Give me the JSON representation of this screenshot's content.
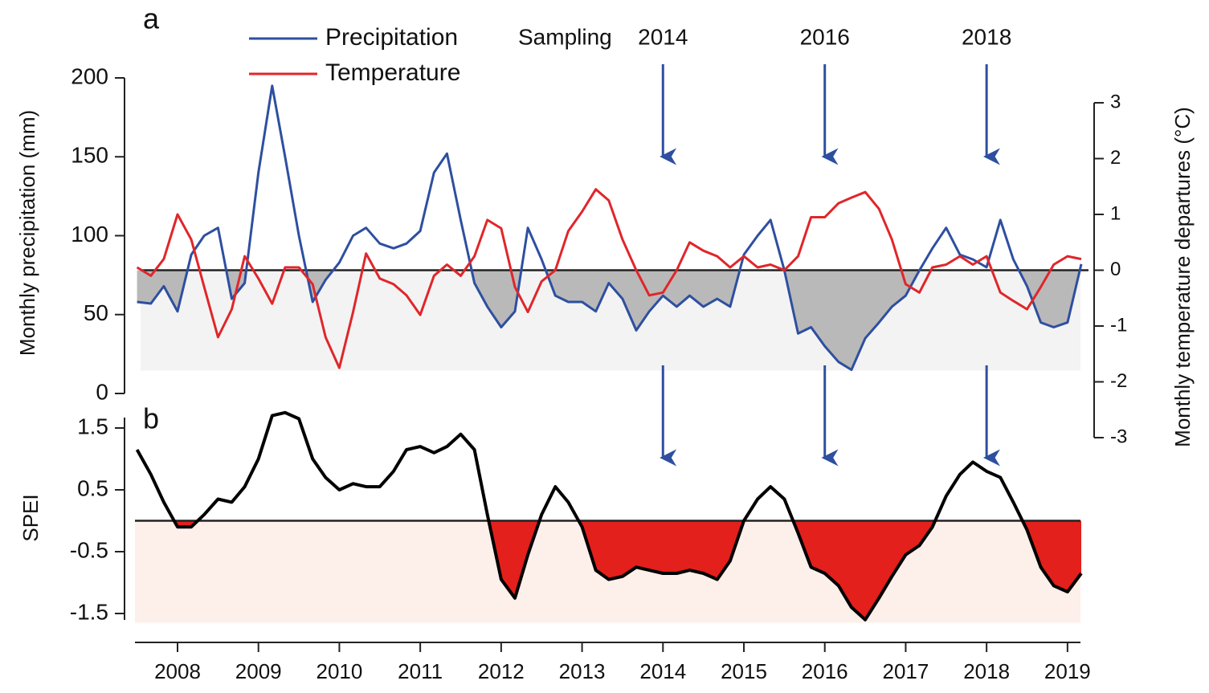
{
  "chart_data": [
    {
      "type": "line",
      "panel": "a",
      "ylabel": "Monthly precipitation (mm)",
      "y2label": "Monthly temperature departures (°C)",
      "x": [
        2007.5,
        2007.67,
        2007.83,
        2008,
        2008.17,
        2008.33,
        2008.5,
        2008.67,
        2008.83,
        2009,
        2009.17,
        2009.33,
        2009.5,
        2009.67,
        2009.83,
        2010,
        2010.17,
        2010.33,
        2010.5,
        2010.67,
        2010.83,
        2011,
        2011.17,
        2011.33,
        2011.5,
        2011.67,
        2011.83,
        2012,
        2012.17,
        2012.33,
        2012.5,
        2012.67,
        2012.83,
        2013,
        2013.17,
        2013.33,
        2013.5,
        2013.67,
        2013.83,
        2014,
        2014.17,
        2014.33,
        2014.5,
        2014.67,
        2014.83,
        2015,
        2015.17,
        2015.33,
        2015.5,
        2015.67,
        2015.83,
        2016,
        2016.17,
        2016.33,
        2016.5,
        2016.67,
        2016.83,
        2017,
        2017.17,
        2017.33,
        2017.5,
        2017.67,
        2017.83,
        2018,
        2018.17,
        2018.33,
        2018.5,
        2018.67,
        2018.83,
        2019,
        2019.17
      ],
      "xlim": [
        2007.45,
        2019.2
      ],
      "series": [
        {
          "name": "Precipitation",
          "color": "#2e4fa0",
          "axis": "y",
          "values": [
            58,
            57,
            68,
            52,
            88,
            100,
            105,
            60,
            70,
            140,
            195,
            150,
            100,
            58,
            72,
            83,
            100,
            105,
            95,
            92,
            95,
            103,
            140,
            152,
            110,
            70,
            55,
            42,
            52,
            105,
            85,
            62,
            58,
            58,
            52,
            70,
            60,
            40,
            52,
            62,
            55,
            62,
            55,
            60,
            55,
            88,
            100,
            110,
            78,
            38,
            42,
            30,
            20,
            15,
            35,
            45,
            55,
            62,
            78,
            92,
            105,
            88,
            85,
            80,
            110,
            85,
            68,
            45,
            42,
            45,
            82
          ]
        },
        {
          "name": "Temperature",
          "color": "#e0262a",
          "axis": "y2",
          "values": [
            0.05,
            -0.1,
            0.2,
            1.0,
            0.55,
            -0.3,
            -1.2,
            -0.7,
            0.25,
            -0.15,
            -0.6,
            0.05,
            0.05,
            -0.25,
            -1.2,
            -1.75,
            -0.75,
            0.3,
            -0.15,
            -0.25,
            -0.45,
            -0.8,
            -0.1,
            0.1,
            -0.1,
            0.25,
            0.9,
            0.75,
            -0.3,
            -0.75,
            -0.2,
            0,
            0.7,
            1.05,
            1.45,
            1.25,
            0.55,
            0,
            -0.45,
            -0.4,
            0,
            0.5,
            0.35,
            0.25,
            0.05,
            0.25,
            0.05,
            0.1,
            0,
            0.25,
            0.95,
            0.95,
            1.2,
            1.3,
            1.4,
            1.1,
            0.55,
            -0.25,
            -0.4,
            0.05,
            0.1,
            0.25,
            0.1,
            0.25,
            -0.4,
            -0.55,
            -0.7,
            -0.3,
            0.1,
            0.25,
            0.2
          ]
        }
      ],
      "fill_color": "#b9b9b9",
      "ylim": [
        0,
        200
      ],
      "yticks": [
        0,
        50,
        100,
        150,
        200
      ],
      "y2lim": [
        -3,
        3
      ],
      "y2ticks": [
        -3,
        -2,
        -1,
        0,
        1,
        2,
        3
      ],
      "annotation": "Sampling",
      "sampling_years": [
        2014,
        2016,
        2018
      ]
    },
    {
      "type": "area",
      "panel": "b",
      "ylabel": "SPEI",
      "x": [
        2007.5,
        2007.67,
        2007.83,
        2008,
        2008.17,
        2008.33,
        2008.5,
        2008.67,
        2008.83,
        2009,
        2009.17,
        2009.33,
        2009.5,
        2009.67,
        2009.83,
        2010,
        2010.17,
        2010.33,
        2010.5,
        2010.67,
        2010.83,
        2011,
        2011.17,
        2011.33,
        2011.5,
        2011.67,
        2011.83,
        2012,
        2012.17,
        2012.33,
        2012.5,
        2012.67,
        2012.83,
        2013,
        2013.17,
        2013.33,
        2013.5,
        2013.67,
        2013.83,
        2014,
        2014.17,
        2014.33,
        2014.5,
        2014.67,
        2014.83,
        2015,
        2015.17,
        2015.33,
        2015.5,
        2015.67,
        2015.83,
        2016,
        2016.17,
        2016.33,
        2016.5,
        2016.67,
        2016.83,
        2017,
        2017.17,
        2017.33,
        2017.5,
        2017.67,
        2017.83,
        2018,
        2018.17,
        2018.33,
        2018.5,
        2018.67,
        2018.83,
        2019,
        2019.17
      ],
      "xlim": [
        2007.45,
        2019.2
      ],
      "xticks": [
        2008,
        2009,
        2010,
        2011,
        2012,
        2013,
        2014,
        2015,
        2016,
        2017,
        2018,
        2019
      ],
      "values": [
        1.15,
        0.75,
        0.3,
        -0.1,
        -0.1,
        0.1,
        0.35,
        0.3,
        0.55,
        1.0,
        1.7,
        1.75,
        1.65,
        1.0,
        0.7,
        0.5,
        0.6,
        0.55,
        0.55,
        0.8,
        1.15,
        1.2,
        1.1,
        1.2,
        1.4,
        1.15,
        0.1,
        -0.95,
        -1.25,
        -0.55,
        0.1,
        0.55,
        0.3,
        -0.1,
        -0.8,
        -0.95,
        -0.9,
        -0.75,
        -0.8,
        -0.85,
        -0.85,
        -0.8,
        -0.85,
        -0.95,
        -0.65,
        0,
        0.35,
        0.55,
        0.35,
        -0.2,
        -0.75,
        -0.85,
        -1.05,
        -1.4,
        -1.6,
        -1.25,
        -0.9,
        -0.55,
        -0.4,
        -0.1,
        0.4,
        0.75,
        0.95,
        0.8,
        0.7,
        0.3,
        -0.15,
        -0.75,
        -1.05,
        -1.15,
        -0.85
      ],
      "color": "#000000",
      "fill_color": "#e3201b",
      "ylim": [
        -1.7,
        1.7
      ],
      "yticks": [
        -1.5,
        -0.5,
        0.5,
        1.5
      ]
    }
  ]
}
